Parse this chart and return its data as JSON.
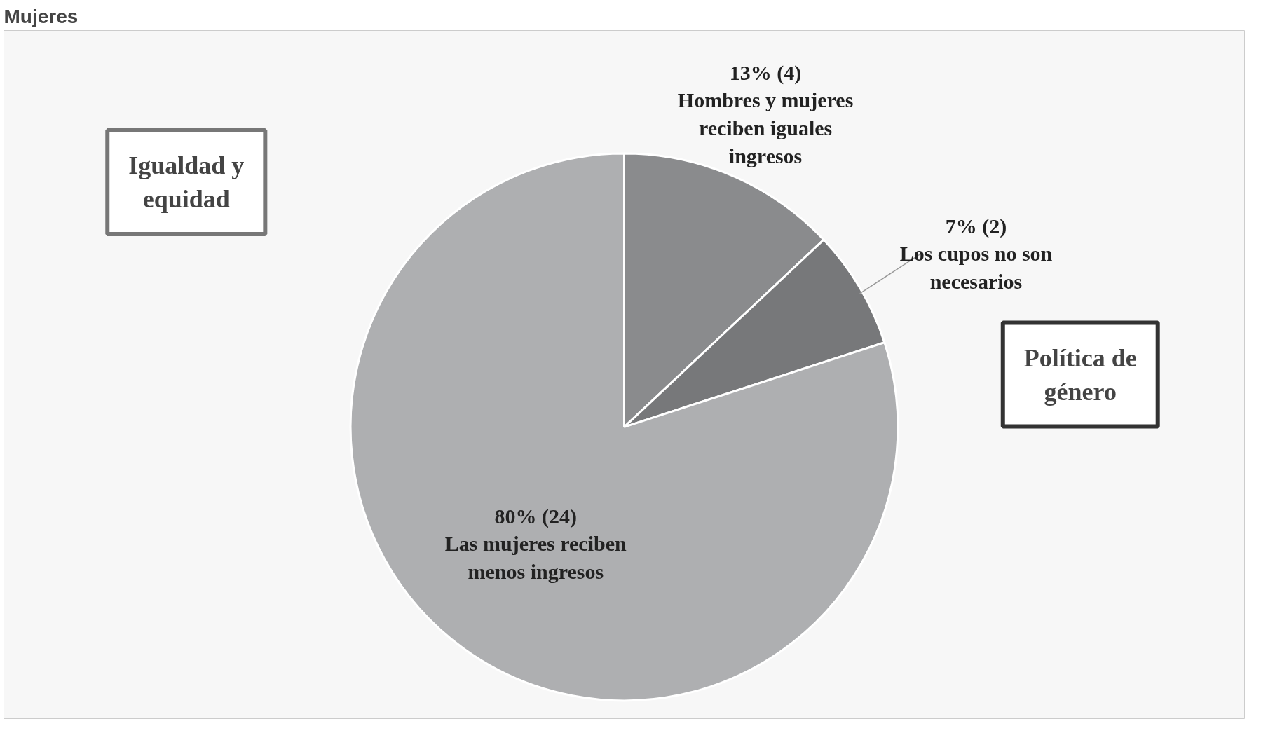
{
  "chart_data": {
    "type": "pie",
    "title": "Mujeres",
    "categories": [
      "Hombres y mujeres reciben iguales ingresos",
      "Los cupos no son necesarios",
      "Las mujeres reciben menos ingresos"
    ],
    "values": [
      13,
      7,
      80
    ],
    "value_labels": [
      "13% (4)",
      "7% (2)",
      "80% (24)"
    ],
    "colors": [
      "#8a8b8d",
      "#77787a",
      "#aeafb1"
    ],
    "annotations": [
      "Igualdad y equidad",
      "Política de género"
    ]
  }
}
